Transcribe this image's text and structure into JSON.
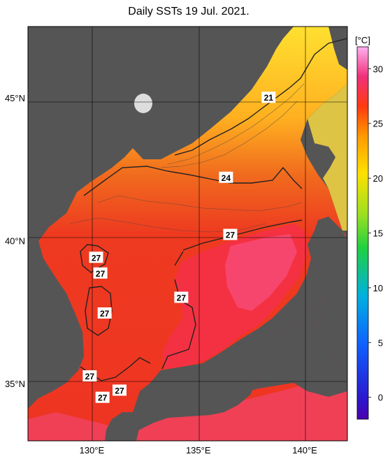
{
  "title": "Daily SSTs 19 Jul. 2021.",
  "map": {
    "lon_range": [
      127,
      142
    ],
    "lat_range": [
      33,
      47.5
    ],
    "x_ticks": [
      {
        "value": 130,
        "label": "130°E"
      },
      {
        "value": 135,
        "label": "135°E"
      },
      {
        "value": 140,
        "label": "140°E"
      }
    ],
    "y_ticks": [
      {
        "value": 35,
        "label": "35°N"
      },
      {
        "value": 40,
        "label": "40°N"
      },
      {
        "value": 45,
        "label": "45°N"
      }
    ],
    "contour_labels": [
      {
        "text": "21",
        "lon": 138.3,
        "lat": 45.0
      },
      {
        "text": "24",
        "lon": 136.3,
        "lat": 42.2
      },
      {
        "text": "27",
        "lon": 136.5,
        "lat": 40.2
      },
      {
        "text": "27",
        "lon": 130.2,
        "lat": 39.4
      },
      {
        "text": "27",
        "lon": 130.4,
        "lat": 38.85
      },
      {
        "text": "27",
        "lon": 130.6,
        "lat": 37.45
      },
      {
        "text": "27",
        "lon": 134.2,
        "lat": 38.0
      },
      {
        "text": "27",
        "lon": 129.9,
        "lat": 35.25
      },
      {
        "text": "27",
        "lon": 130.5,
        "lat": 34.5
      },
      {
        "text": "27",
        "lon": 131.3,
        "lat": 34.75
      }
    ],
    "colors": {
      "land": "#555555",
      "ocean_warm": "#ee3322",
      "ocean_hot": "#f0407a",
      "ocean_cool": "#ffd020"
    }
  },
  "colorbar": {
    "unit": "[°C]",
    "min": -2,
    "max": 32,
    "ticks": [
      {
        "value": 0,
        "label": "0"
      },
      {
        "value": 5,
        "label": "5"
      },
      {
        "value": 10,
        "label": "10"
      },
      {
        "value": 15,
        "label": "15"
      },
      {
        "value": 20,
        "label": "20"
      },
      {
        "value": 25,
        "label": "25"
      },
      {
        "value": 30,
        "label": "30"
      }
    ]
  }
}
